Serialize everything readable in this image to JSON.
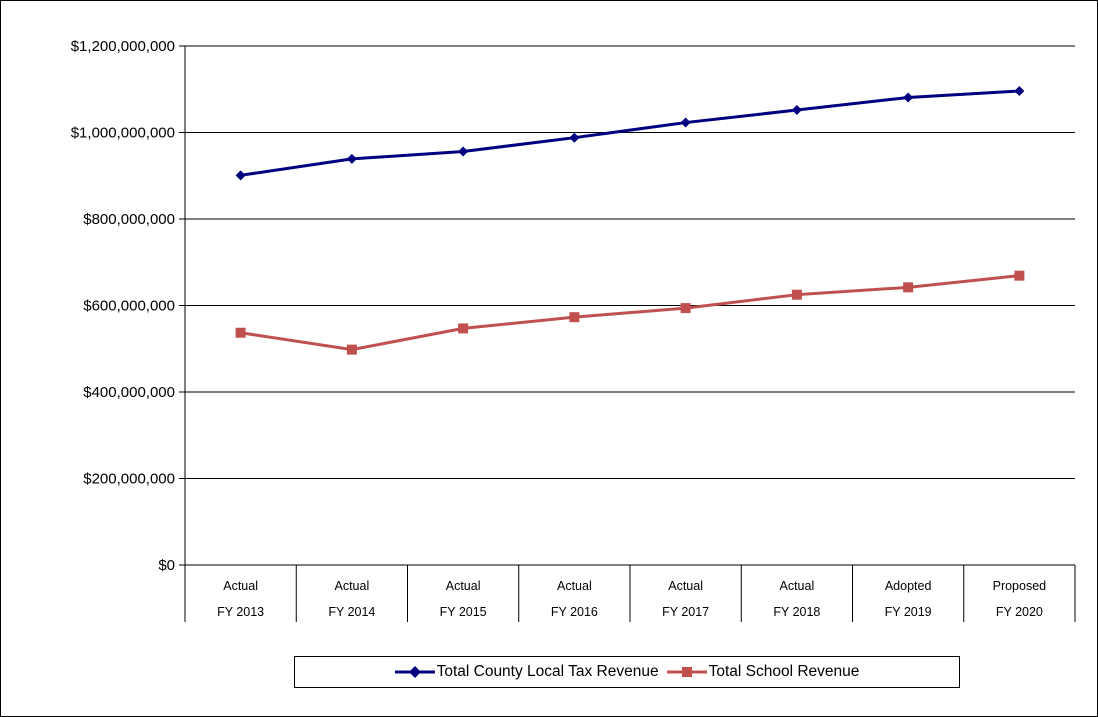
{
  "chart_data": {
    "type": "line",
    "title": "",
    "xlabel": "",
    "ylabel": "",
    "categories": [
      [
        "Actual",
        "FY 2013"
      ],
      [
        "Actual",
        "FY 2014"
      ],
      [
        "Actual",
        "FY 2015"
      ],
      [
        "Actual",
        "FY 2016"
      ],
      [
        "Actual",
        "FY 2017"
      ],
      [
        "Actual",
        "FY 2018"
      ],
      [
        "Adopted",
        "FY 2019"
      ],
      [
        "Proposed",
        "FY 2020"
      ]
    ],
    "ylim": [
      0,
      1200000000
    ],
    "yticks": [
      0,
      200000000,
      400000000,
      600000000,
      800000000,
      1000000000,
      1200000000
    ],
    "ytick_labels": [
      "$0",
      "$200,000,000",
      "$400,000,000",
      "$600,000,000",
      "$800,000,000",
      "$1,000,000,000",
      "$1,200,000,000"
    ],
    "grid": true,
    "legend_position": "bottom",
    "series": [
      {
        "name": "Total County Local Tax Revenue",
        "color": "#000080",
        "marker": "diamond",
        "values": [
          901000000,
          939000000,
          956000000,
          988000000,
          1023000000,
          1052000000,
          1081000000,
          1096000000
        ]
      },
      {
        "name": "Total School Revenue",
        "color": "#C0504D",
        "marker": "square",
        "values": [
          537000000,
          498000000,
          547000000,
          573000000,
          594000000,
          625000000,
          642000000,
          669000000
        ]
      }
    ]
  }
}
